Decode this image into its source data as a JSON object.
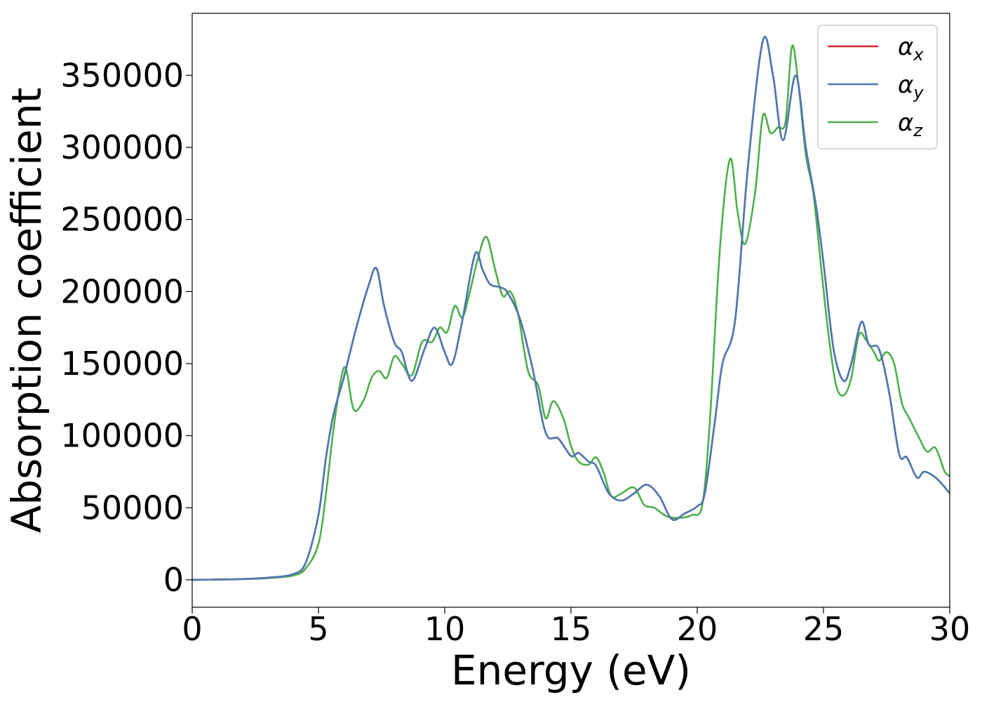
{
  "chart_data": {
    "type": "line",
    "title": "",
    "xlabel": "Energy (eV)",
    "ylabel": "Absorption coefficient",
    "xlim": [
      0,
      30
    ],
    "ylim": [
      -19000,
      393000
    ],
    "xticks": [
      0,
      5,
      10,
      15,
      20,
      25,
      30
    ],
    "xtick_labels": [
      "0",
      "5",
      "10",
      "15",
      "20",
      "25",
      "30"
    ],
    "yticks": [
      0,
      50000,
      100000,
      150000,
      200000,
      250000,
      300000,
      350000
    ],
    "ytick_labels": [
      "0",
      "50000",
      "100000",
      "150000",
      "200000",
      "250000",
      "300000",
      "350000"
    ],
    "grid": false,
    "legend_position": "top-right",
    "series": [
      {
        "name": "αx",
        "symbol": "α",
        "subscript": "x",
        "color": "#d62728",
        "x": [
          0,
          1,
          2,
          3,
          4,
          4.5,
          5,
          5.3,
          5.6,
          6,
          6.5,
          7,
          7.3,
          7.6,
          8,
          8.3,
          8.7,
          9.2,
          9.6,
          10,
          10.3,
          10.7,
          11.2,
          11.5,
          11.8,
          12.2,
          12.5,
          13,
          13.5,
          14,
          14.5,
          15,
          15.3,
          15.7,
          16,
          16.5,
          17,
          17.5,
          18,
          18.5,
          19,
          19.5,
          20,
          20.3,
          20.7,
          21,
          21.5,
          22,
          22.6,
          23,
          23.4,
          23.9,
          24.3,
          24.7,
          25,
          25.4,
          25.8,
          26.1,
          26.5,
          26.8,
          27.2,
          27.6,
          28,
          28.3,
          28.7,
          29,
          29.5,
          30
        ],
        "y": [
          0,
          200,
          600,
          1500,
          4000,
          12000,
          45000,
          85000,
          115000,
          140000,
          175000,
          205000,
          216000,
          190000,
          165000,
          158000,
          138000,
          160000,
          175000,
          158000,
          150000,
          180000,
          226000,
          215000,
          205000,
          203000,
          199000,
          180000,
          145000,
          102000,
          98000,
          86000,
          88000,
          82000,
          79000,
          60000,
          55000,
          60000,
          66000,
          58000,
          42000,
          46000,
          51000,
          60000,
          110000,
          150000,
          180000,
          285000,
          374000,
          350000,
          305000,
          350000,
          300000,
          260000,
          220000,
          160000,
          138000,
          150000,
          179000,
          163000,
          160000,
          130000,
          87000,
          85000,
          71000,
          75000,
          70000,
          60000
        ]
      },
      {
        "name": "αy",
        "symbol": "α",
        "subscript": "y",
        "color": "#4a7bb5",
        "x": [
          0,
          1,
          2,
          3,
          4,
          4.5,
          5,
          5.3,
          5.6,
          6,
          6.5,
          7,
          7.3,
          7.6,
          8,
          8.3,
          8.7,
          9.2,
          9.6,
          10,
          10.3,
          10.7,
          11.2,
          11.5,
          11.8,
          12.2,
          12.5,
          13,
          13.5,
          14,
          14.5,
          15,
          15.3,
          15.7,
          16,
          16.5,
          17,
          17.5,
          18,
          18.5,
          19,
          19.5,
          20,
          20.3,
          20.7,
          21,
          21.5,
          22,
          22.6,
          23,
          23.4,
          23.9,
          24.3,
          24.7,
          25,
          25.4,
          25.8,
          26.1,
          26.5,
          26.8,
          27.2,
          27.6,
          28,
          28.3,
          28.7,
          29,
          29.5,
          30
        ],
        "y": [
          0,
          200,
          600,
          1500,
          4000,
          12000,
          45000,
          85000,
          115000,
          140000,
          175000,
          205000,
          216000,
          190000,
          165000,
          158000,
          138000,
          160000,
          175000,
          158000,
          150000,
          180000,
          226000,
          215000,
          205000,
          203000,
          199000,
          180000,
          145000,
          102000,
          98000,
          86000,
          88000,
          82000,
          79000,
          60000,
          55000,
          60000,
          66000,
          58000,
          42000,
          46000,
          51000,
          60000,
          110000,
          150000,
          180000,
          285000,
          374000,
          350000,
          305000,
          350000,
          300000,
          260000,
          220000,
          160000,
          138000,
          150000,
          179000,
          163000,
          160000,
          130000,
          87000,
          85000,
          71000,
          75000,
          70000,
          60000
        ]
      },
      {
        "name": "αz",
        "symbol": "α",
        "subscript": "z",
        "color": "#4daf4a",
        "x": [
          0,
          1,
          2,
          3,
          4,
          4.5,
          5,
          5.3,
          5.6,
          5.9,
          6.1,
          6.4,
          6.8,
          7.1,
          7.4,
          7.7,
          8,
          8.3,
          8.7,
          9.1,
          9.5,
          9.8,
          10.1,
          10.4,
          10.7,
          11,
          11.3,
          11.65,
          12,
          12.3,
          12.6,
          12.9,
          13.3,
          13.7,
          14,
          14.3,
          14.7,
          15,
          15.3,
          15.7,
          16,
          16.3,
          16.6,
          17,
          17.5,
          17.9,
          18.3,
          18.8,
          19.3,
          19.8,
          20.2,
          20.5,
          20.9,
          21.3,
          21.6,
          21.9,
          22.3,
          22.6,
          22.9,
          23.2,
          23.5,
          23.75,
          24,
          24.3,
          24.6,
          24.9,
          25.2,
          25.5,
          25.8,
          26.1,
          26.4,
          26.7,
          27,
          27.2,
          27.5,
          27.8,
          28.1,
          28.4,
          28.8,
          29.1,
          29.4,
          29.6,
          29.8,
          30
        ],
        "y": [
          0,
          200,
          500,
          1200,
          3000,
          8000,
          25000,
          60000,
          105000,
          140000,
          146000,
          118000,
          125000,
          140000,
          145000,
          140000,
          155000,
          150000,
          142000,
          165000,
          165000,
          175000,
          172000,
          190000,
          182000,
          200000,
          222000,
          238000,
          215000,
          197000,
          200000,
          185000,
          145000,
          135000,
          112000,
          124000,
          112000,
          93000,
          82000,
          80000,
          85000,
          74000,
          58000,
          60000,
          64000,
          52000,
          50000,
          44000,
          43000,
          45000,
          52000,
          110000,
          230000,
          292000,
          255000,
          233000,
          270000,
          322000,
          310000,
          314000,
          318000,
          370000,
          345000,
          295000,
          268000,
          218000,
          170000,
          135000,
          128000,
          140000,
          170000,
          166000,
          158000,
          152000,
          158000,
          150000,
          123000,
          112000,
          98000,
          89000,
          92000,
          85000,
          75000,
          72000
        ]
      }
    ]
  }
}
